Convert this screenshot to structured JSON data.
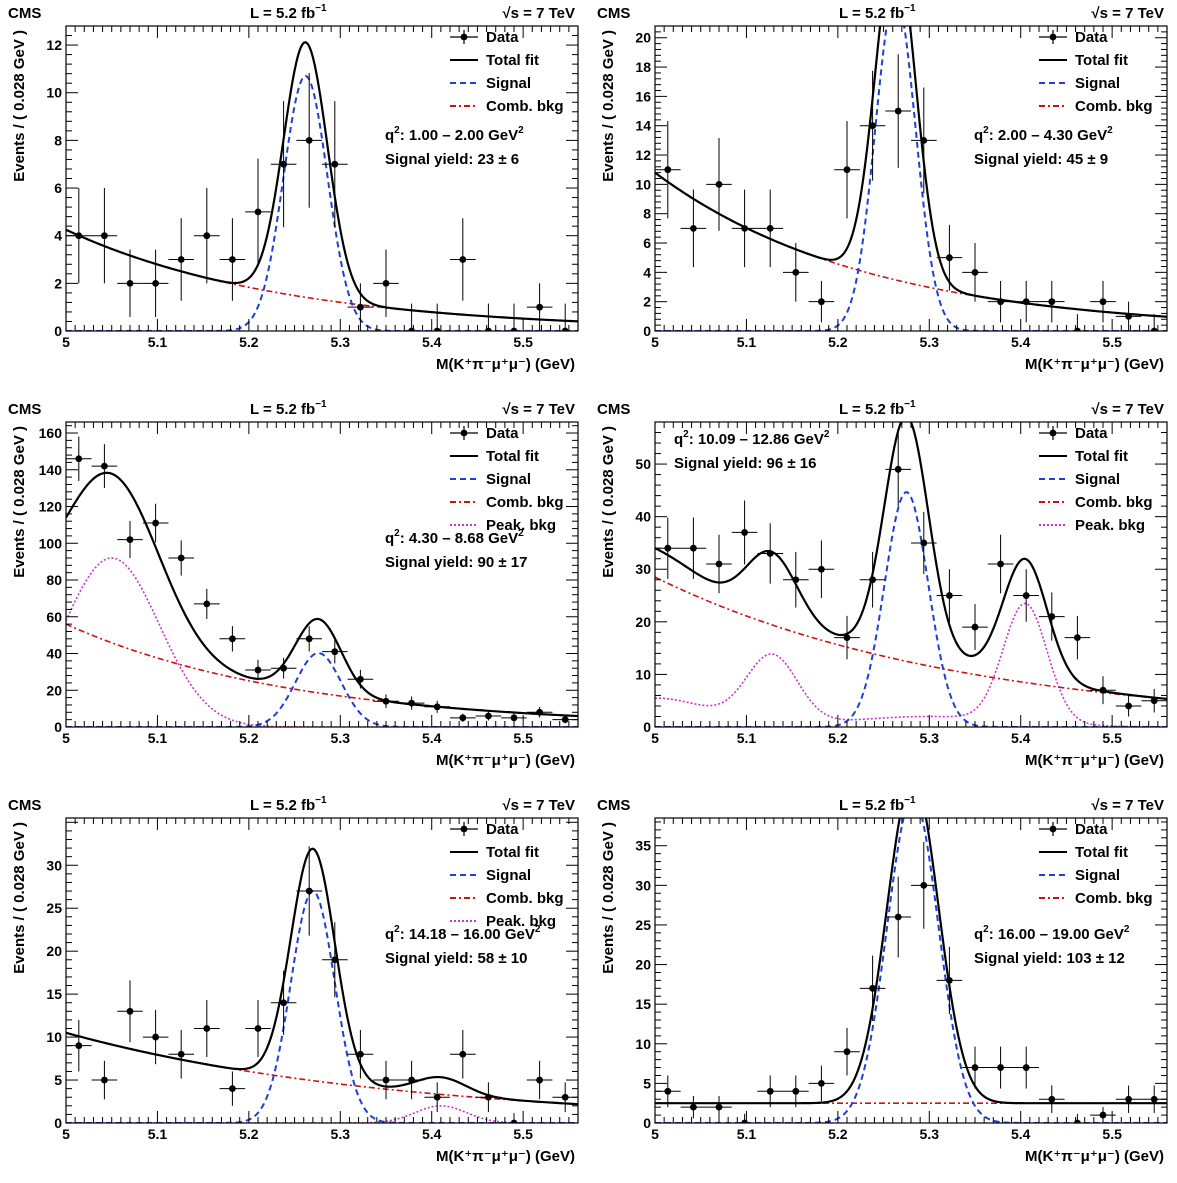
{
  "figure": {
    "experiment": "CMS",
    "lumi_prefix": "L = 5.2 fb",
    "lumi_sup": "−1",
    "energy": "√s = 7 TeV",
    "xlabel": "M(K⁺π⁻μ⁺μ⁻) (GeV)",
    "ylabel": "Events / ( 0.028 GeV )",
    "yield_prefix": "Signal yield:",
    "q2_prefix": "q",
    "q2_units": "GeV"
  },
  "legend_labels": {
    "data": "Data",
    "total": "Total fit",
    "signal": "Signal",
    "comb": "Comb. bkg",
    "peak": "Peak. bkg"
  },
  "colors": {
    "data": "#000000",
    "total": "#000000",
    "signal": "#1f3fd6",
    "comb": "#d01010",
    "peak": "#cc33cc"
  },
  "chart_data": [
    {
      "type": "scatter",
      "q2_range": "1.00 – 2.00",
      "signal_yield": "23",
      "signal_error": "6",
      "xlim": [
        5.0,
        5.56
      ],
      "ylim": [
        0,
        12.8
      ],
      "x_ticks": [
        5,
        5.1,
        5.2,
        5.3,
        5.4,
        5.5
      ],
      "y_ticks": [
        0,
        2,
        4,
        6,
        8,
        10,
        12
      ],
      "legend_entries": [
        "data",
        "total",
        "signal",
        "comb"
      ],
      "data_points": {
        "x": [
          5.014,
          5.042,
          5.07,
          5.098,
          5.126,
          5.154,
          5.182,
          5.21,
          5.238,
          5.266,
          5.294,
          5.322,
          5.35,
          5.378,
          5.406,
          5.434,
          5.462,
          5.49,
          5.518,
          5.546
        ],
        "y": [
          4,
          4,
          2,
          2,
          3,
          4,
          3,
          5,
          7,
          8,
          7,
          1,
          2,
          0,
          0,
          3,
          0,
          0,
          1,
          0
        ]
      },
      "components": {
        "signal": {
          "yield": 23,
          "mean": 5.262,
          "sigma": 0.024
        },
        "comb": {
          "type": "exp",
          "a0": 4.25,
          "slope": 4.2
        },
        "peak": null
      }
    },
    {
      "type": "scatter",
      "q2_range": "2.00 – 4.30",
      "signal_yield": "45",
      "signal_error": "9",
      "xlim": [
        5.0,
        5.56
      ],
      "ylim": [
        0,
        20.8
      ],
      "x_ticks": [
        5,
        5.1,
        5.2,
        5.3,
        5.4,
        5.5
      ],
      "y_ticks": [
        0,
        2,
        4,
        6,
        8,
        10,
        12,
        14,
        16,
        18,
        20
      ],
      "legend_entries": [
        "data",
        "total",
        "signal",
        "comb"
      ],
      "data_points": {
        "x": [
          5.014,
          5.042,
          5.07,
          5.098,
          5.126,
          5.154,
          5.182,
          5.21,
          5.238,
          5.266,
          5.294,
          5.322,
          5.35,
          5.378,
          5.406,
          5.434,
          5.462,
          5.49,
          5.518,
          5.546
        ],
        "y": [
          11,
          7,
          10,
          7,
          7,
          4,
          2,
          11,
          14,
          15,
          13,
          5,
          4,
          2,
          2,
          2,
          0,
          2,
          1,
          0
        ]
      },
      "components": {
        "signal": {
          "yield": 45,
          "mean": 5.263,
          "sigma": 0.022
        },
        "comb": {
          "type": "exp",
          "a0": 10.8,
          "slope": 4.3
        },
        "peak": null
      }
    },
    {
      "type": "scatter",
      "q2_range": "4.30 – 8.68",
      "signal_yield": "90",
      "signal_error": "17",
      "xlim": [
        5.0,
        5.56
      ],
      "ylim": [
        0,
        166
      ],
      "x_ticks": [
        5,
        5.1,
        5.2,
        5.3,
        5.4,
        5.5
      ],
      "y_ticks": [
        0,
        20,
        40,
        60,
        80,
        100,
        120,
        140,
        160
      ],
      "legend_entries": [
        "data",
        "total",
        "signal",
        "comb",
        "peak"
      ],
      "data_points": {
        "x": [
          5.014,
          5.042,
          5.07,
          5.098,
          5.126,
          5.154,
          5.182,
          5.21,
          5.238,
          5.266,
          5.294,
          5.322,
          5.35,
          5.378,
          5.406,
          5.434,
          5.462,
          5.49,
          5.518,
          5.546
        ],
        "y": [
          146,
          142,
          102,
          111,
          92,
          67,
          48,
          31,
          32,
          48,
          41,
          26,
          14,
          13,
          11,
          5,
          6,
          5,
          8,
          4
        ]
      },
      "components": {
        "signal": {
          "yield": 90,
          "mean": 5.276,
          "sigma": 0.025
        },
        "comb": {
          "type": "exp",
          "a0": 56,
          "slope": 4.0
        },
        "peak": {
          "type": "gauss_sum",
          "terms": [
            {
              "amp": 92,
              "mean": 5.05,
              "sigma": 0.052
            }
          ]
        }
      }
    },
    {
      "type": "scatter",
      "q2_range": "10.09 – 12.86",
      "signal_yield": "96",
      "signal_error": "16",
      "xlim": [
        5.0,
        5.56
      ],
      "ylim": [
        0,
        58
      ],
      "x_ticks": [
        5,
        5.1,
        5.2,
        5.3,
        5.4,
        5.5
      ],
      "y_ticks": [
        0,
        10,
        20,
        30,
        40,
        50
      ],
      "legend_entries": [
        "data",
        "total",
        "signal",
        "comb",
        "peak"
      ],
      "data_points": {
        "x": [
          5.014,
          5.042,
          5.07,
          5.098,
          5.126,
          5.154,
          5.182,
          5.21,
          5.238,
          5.266,
          5.294,
          5.322,
          5.35,
          5.378,
          5.406,
          5.434,
          5.462,
          5.49,
          5.518,
          5.546
        ],
        "y": [
          34,
          34,
          31,
          37,
          33,
          28,
          30,
          17,
          28,
          49,
          35,
          25,
          19,
          31,
          25,
          21,
          17,
          7,
          4,
          5
        ]
      },
      "components": {
        "signal": {
          "yield": 96,
          "mean": 5.275,
          "sigma": 0.024
        },
        "comb": {
          "type": "exp",
          "a0": 28.5,
          "slope": 3.0
        },
        "peak": {
          "type": "gauss_sum",
          "terms": [
            {
              "amp": 5.5,
              "mean": 5.0,
              "sigma": 0.06
            },
            {
              "amp": 13.0,
              "mean": 5.128,
              "sigma": 0.028
            },
            {
              "amp": 2.0,
              "mean": 5.3,
              "sigma": 0.09
            },
            {
              "amp": 22.5,
              "mean": 5.405,
              "sigma": 0.024
            }
          ]
        }
      }
    },
    {
      "type": "scatter",
      "q2_range": "14.18 – 16.00",
      "signal_yield": "58",
      "signal_error": "10",
      "xlim": [
        5.0,
        5.56
      ],
      "ylim": [
        0,
        35.5
      ],
      "x_ticks": [
        5,
        5.1,
        5.2,
        5.3,
        5.4,
        5.5
      ],
      "y_ticks": [
        0,
        5,
        10,
        15,
        20,
        25,
        30
      ],
      "legend_entries": [
        "data",
        "total",
        "signal",
        "comb",
        "peak"
      ],
      "data_points": {
        "x": [
          5.014,
          5.042,
          5.07,
          5.098,
          5.126,
          5.154,
          5.182,
          5.21,
          5.238,
          5.266,
          5.294,
          5.322,
          5.35,
          5.378,
          5.406,
          5.434,
          5.462,
          5.49,
          5.518,
          5.546
        ],
        "y": [
          9,
          5,
          13,
          10,
          8,
          11,
          4,
          11,
          14,
          27,
          19,
          8,
          5,
          5,
          3,
          8,
          3,
          0,
          5,
          3
        ]
      },
      "components": {
        "signal": {
          "yield": 58,
          "mean": 5.27,
          "sigma": 0.024
        },
        "comb": {
          "type": "exp",
          "a0": 10.5,
          "slope": 2.8
        },
        "peak": {
          "type": "gauss_sum",
          "terms": [
            {
              "amp": 2.0,
              "mean": 5.41,
              "sigma": 0.028
            }
          ]
        }
      }
    },
    {
      "type": "scatter",
      "q2_range": "16.00 – 19.00",
      "signal_yield": "103",
      "signal_error": "12",
      "xlim": [
        5.0,
        5.56
      ],
      "ylim": [
        0,
        38.5
      ],
      "x_ticks": [
        5,
        5.1,
        5.2,
        5.3,
        5.4,
        5.5
      ],
      "y_ticks": [
        0,
        5,
        10,
        15,
        20,
        25,
        30,
        35
      ],
      "legend_entries": [
        "data",
        "total",
        "signal",
        "comb"
      ],
      "data_points": {
        "x": [
          5.014,
          5.042,
          5.07,
          5.098,
          5.126,
          5.154,
          5.182,
          5.21,
          5.238,
          5.266,
          5.294,
          5.322,
          5.35,
          5.378,
          5.406,
          5.434,
          5.462,
          5.49,
          5.518,
          5.546
        ],
        "y": [
          4,
          2,
          2,
          0,
          4,
          4,
          5,
          9,
          17,
          26,
          30,
          18,
          7,
          7,
          7,
          3,
          0,
          1,
          3,
          3
        ]
      },
      "components": {
        "signal": {
          "yield": 103,
          "mean": 5.282,
          "sigma": 0.028
        },
        "comb": {
          "type": "const",
          "a0": 2.5
        },
        "peak": null
      }
    }
  ]
}
